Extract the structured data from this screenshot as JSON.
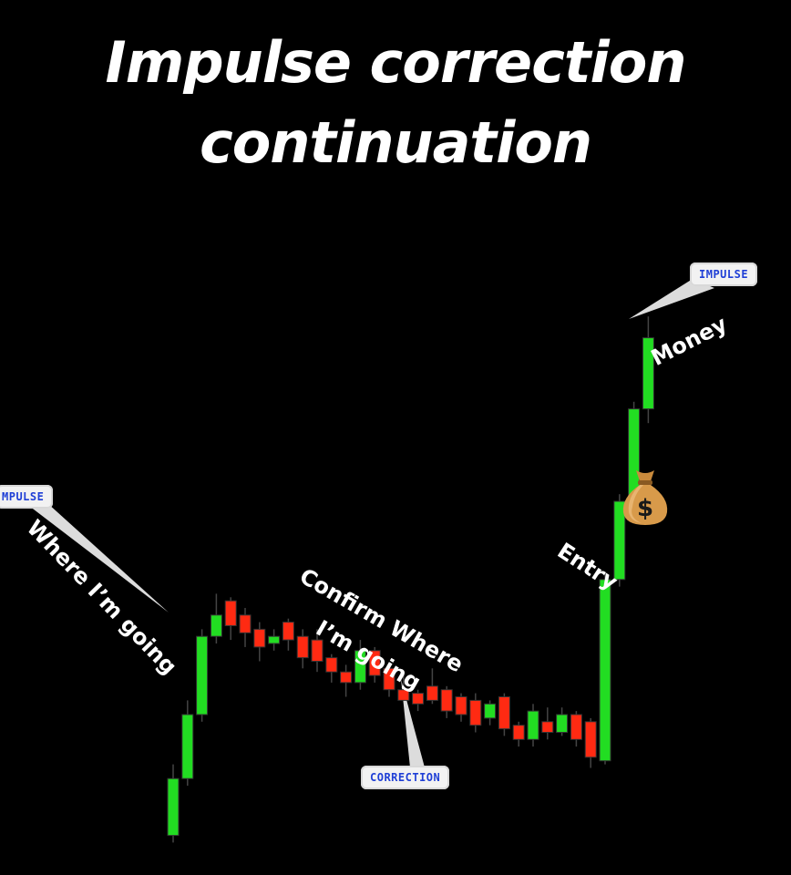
{
  "title": {
    "line1": "Impulse correction",
    "line2": "continuation"
  },
  "callouts": {
    "left": "MPULSE",
    "right": "IMPULSE",
    "bottom": "CORRECTION"
  },
  "notes": {
    "left": "Where I’m going",
    "middle_line1": "Confirm Where",
    "middle_line2": "I’m going",
    "entry": "Entry",
    "money": "Money"
  },
  "icons": {
    "moneybag": "money-bag-icon"
  },
  "colors": {
    "background": "#000000",
    "bullish": "#22dd22",
    "bearish": "#ff2a12",
    "wick": "#444444",
    "callout_text": "#1f3fd6"
  },
  "chart_data": {
    "type": "candlestick",
    "title": "Impulse correction continuation",
    "ylim": [
      0,
      100
    ],
    "grid": false,
    "candles": [
      {
        "open": 3,
        "high": 13,
        "low": 2,
        "close": 11
      },
      {
        "open": 11,
        "high": 22,
        "low": 10,
        "close": 20
      },
      {
        "open": 20,
        "high": 32,
        "low": 19,
        "close": 31
      },
      {
        "open": 31,
        "high": 37,
        "low": 30,
        "close": 34
      },
      {
        "open": 36,
        "high": 36.5,
        "low": 30.5,
        "close": 32.5
      },
      {
        "open": 34,
        "high": 35,
        "low": 29.5,
        "close": 31.5
      },
      {
        "open": 32,
        "high": 33,
        "low": 27.5,
        "close": 29.5
      },
      {
        "open": 30,
        "high": 32,
        "low": 29,
        "close": 31
      },
      {
        "open": 33,
        "high": 33.5,
        "low": 29,
        "close": 30.5
      },
      {
        "open": 31,
        "high": 32,
        "low": 26.5,
        "close": 28
      },
      {
        "open": 30.5,
        "high": 32,
        "low": 26,
        "close": 27.5
      },
      {
        "open": 28,
        "high": 28.5,
        "low": 24.5,
        "close": 26
      },
      {
        "open": 26,
        "high": 27,
        "low": 22.5,
        "close": 24.5
      },
      {
        "open": 24.5,
        "high": 30.5,
        "low": 23.5,
        "close": 29
      },
      {
        "open": 29,
        "high": 29.5,
        "low": 24.5,
        "close": 25.5
      },
      {
        "open": 26.5,
        "high": 27,
        "low": 22.5,
        "close": 23.5
      },
      {
        "open": 23.5,
        "high": 26,
        "low": 22,
        "close": 22
      },
      {
        "open": 23,
        "high": 23.5,
        "low": 20.5,
        "close": 21.5
      },
      {
        "open": 24,
        "high": 26.5,
        "low": 21.5,
        "close": 22
      },
      {
        "open": 23.5,
        "high": 24,
        "low": 19.5,
        "close": 20.5
      },
      {
        "open": 22.5,
        "high": 23,
        "low": 19,
        "close": 20
      },
      {
        "open": 22,
        "high": 23,
        "low": 17.5,
        "close": 18.5
      },
      {
        "open": 19.5,
        "high": 22,
        "low": 18.5,
        "close": 21.5
      },
      {
        "open": 22.5,
        "high": 23,
        "low": 17,
        "close": 18
      },
      {
        "open": 18.5,
        "high": 19,
        "low": 15.5,
        "close": 16.5
      },
      {
        "open": 16.5,
        "high": 21.5,
        "low": 15.5,
        "close": 20.5
      },
      {
        "open": 19,
        "high": 21,
        "low": 16.5,
        "close": 17.5
      },
      {
        "open": 17.5,
        "high": 21,
        "low": 17,
        "close": 20
      },
      {
        "open": 20,
        "high": 20.5,
        "low": 15.5,
        "close": 16.5
      },
      {
        "open": 19,
        "high": 19.5,
        "low": 12.5,
        "close": 14
      },
      {
        "open": 13.5,
        "high": 40,
        "low": 13,
        "close": 39
      },
      {
        "open": 39,
        "high": 51,
        "low": 38,
        "close": 50
      },
      {
        "open": 50.5,
        "high": 64,
        "low": 50,
        "close": 63
      },
      {
        "open": 63,
        "high": 76,
        "low": 61,
        "close": 73
      }
    ]
  }
}
